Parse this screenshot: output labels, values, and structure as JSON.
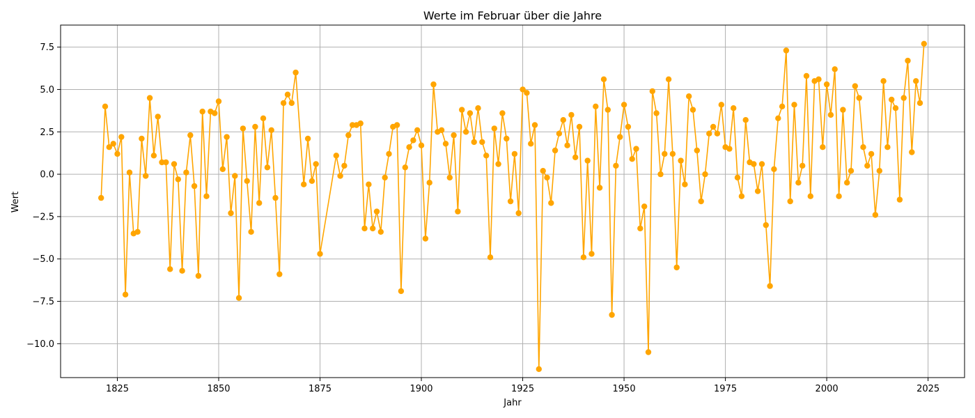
{
  "chart_data": {
    "type": "line",
    "title": "Werte im Februar über die Jahre",
    "xlabel": "Jahr",
    "ylabel": "Wert",
    "xlim": [
      1811,
      2034
    ],
    "ylim": [
      -12.0,
      8.8
    ],
    "xticks": [
      1825,
      1850,
      1875,
      1900,
      1925,
      1950,
      1975,
      2000,
      2025
    ],
    "xtick_labels": [
      "1825",
      "1850",
      "1875",
      "1900",
      "1925",
      "1950",
      "1975",
      "2000",
      "2025"
    ],
    "yticks": [
      -10.0,
      -7.5,
      -5.0,
      -2.5,
      0.0,
      2.5,
      5.0,
      7.5
    ],
    "ytick_labels": [
      "−10.0",
      "−7.5",
      "−5.0",
      "−2.5",
      "0.0",
      "2.5",
      "5.0",
      "7.5"
    ],
    "grid": true,
    "colors": {
      "series": "#FFA500",
      "grid": "#b0b0b0",
      "axis": "#000000"
    },
    "series": [
      {
        "marker": "circle",
        "x": [
          1821,
          1822,
          1823,
          1824,
          1825,
          1826,
          1827,
          1828,
          1829,
          1830,
          1831,
          1832,
          1833,
          1834,
          1835,
          1836,
          1837,
          1838,
          1839,
          1840,
          1841,
          1842,
          1843,
          1844,
          1845,
          1846,
          1847,
          1848,
          1849,
          1850,
          1851,
          1852,
          1853,
          1854,
          1855,
          1856,
          1857,
          1858,
          1859,
          1860,
          1861,
          1862,
          1863,
          1864,
          1865,
          1866,
          1867,
          1868,
          1869,
          1871,
          1872,
          1873,
          1874,
          1875,
          1879,
          1880,
          1881,
          1882,
          1883,
          1884,
          1885,
          1886,
          1887,
          1888,
          1889,
          1890,
          1891,
          1892,
          1893,
          1894,
          1895,
          1896,
          1897,
          1898,
          1899,
          1900,
          1901,
          1902,
          1903,
          1904,
          1905,
          1906,
          1907,
          1908,
          1909,
          1910,
          1911,
          1912,
          1913,
          1914,
          1915,
          1916,
          1917,
          1918,
          1919,
          1920,
          1921,
          1922,
          1923,
          1924,
          1925,
          1926,
          1927,
          1928,
          1929,
          1930,
          1931,
          1932,
          1933,
          1934,
          1935,
          1936,
          1937,
          1938,
          1939,
          1940,
          1941,
          1942,
          1943,
          1944,
          1945,
          1946,
          1947,
          1948,
          1949,
          1950,
          1951,
          1952,
          1953,
          1954,
          1955,
          1956,
          1957,
          1958,
          1959,
          1960,
          1961,
          1962,
          1963,
          1964,
          1965,
          1966,
          1967,
          1968,
          1969,
          1970,
          1971,
          1972,
          1973,
          1974,
          1975,
          1976,
          1977,
          1978,
          1979,
          1980,
          1981,
          1982,
          1983,
          1984,
          1985,
          1986,
          1987,
          1988,
          1989,
          1990,
          1991,
          1992,
          1993,
          1994,
          1995,
          1996,
          1997,
          1998,
          1999,
          2000,
          2001,
          2002,
          2003,
          2004,
          2005,
          2006,
          2007,
          2008,
          2009,
          2010,
          2011,
          2012,
          2013,
          2014,
          2015,
          2016,
          2017,
          2018,
          2019,
          2020,
          2021,
          2022,
          2023,
          2024
        ],
        "y": [
          -1.4,
          4.0,
          1.6,
          1.8,
          1.2,
          2.2,
          -7.1,
          0.1,
          -3.5,
          -3.4,
          2.1,
          -0.1,
          4.5,
          1.1,
          3.4,
          0.7,
          0.7,
          -5.6,
          0.6,
          -0.3,
          -5.7,
          0.1,
          2.3,
          -0.7,
          -6.0,
          3.7,
          -1.3,
          3.7,
          3.6,
          4.3,
          0.3,
          2.2,
          -2.3,
          -0.1,
          -7.3,
          2.7,
          -0.4,
          -3.4,
          2.8,
          -1.7,
          3.3,
          0.4,
          2.6,
          -1.4,
          -5.9,
          4.2,
          4.7,
          4.2,
          6.0,
          -0.6,
          2.1,
          -0.4,
          0.6,
          -4.7,
          1.1,
          -0.1,
          0.5,
          2.3,
          2.9,
          2.9,
          3.0,
          -3.2,
          -0.6,
          -3.2,
          -2.2,
          -3.4,
          -0.2,
          1.2,
          2.8,
          2.9,
          -6.9,
          0.4,
          1.6,
          2.0,
          2.6,
          1.7,
          -3.8,
          -0.5,
          5.3,
          2.5,
          2.6,
          1.8,
          -0.2,
          2.3,
          -2.2,
          3.8,
          2.5,
          3.6,
          1.9,
          3.9,
          1.9,
          1.1,
          -4.9,
          2.7,
          0.6,
          3.6,
          2.1,
          -1.6,
          1.2,
          -2.3,
          5.0,
          4.8,
          1.8,
          2.9,
          -11.5,
          0.2,
          -0.2,
          -1.7,
          1.4,
          2.4,
          3.2,
          1.7,
          3.5,
          1.0,
          2.8,
          -4.9,
          0.8,
          -4.7,
          4.0,
          -0.8,
          5.6,
          3.8,
          -8.3,
          0.5,
          2.2,
          4.1,
          2.8,
          0.9,
          1.5,
          -3.2,
          -1.9,
          -10.5,
          4.9,
          3.6,
          0.0,
          1.2,
          5.6,
          1.2,
          -5.5,
          0.8,
          -0.6,
          4.6,
          3.8,
          1.4,
          -1.6,
          0.0,
          2.4,
          2.8,
          2.4,
          4.1,
          1.6,
          1.5,
          3.9,
          -0.2,
          -1.3,
          3.2,
          0.7,
          0.6,
          -1.0,
          0.6,
          -3.0,
          -6.6,
          0.3,
          3.3,
          4.0,
          7.3,
          -1.6,
          4.1,
          -0.5,
          0.5,
          5.8,
          -1.3,
          5.5,
          5.6,
          1.6,
          5.3,
          3.5,
          6.2,
          -1.3,
          3.8,
          -0.5,
          0.2,
          5.2,
          4.5,
          1.6,
          0.5,
          1.2,
          -2.4,
          0.2,
          5.5,
          1.6,
          4.4,
          3.9,
          -1.5,
          4.5,
          6.7,
          1.3,
          5.5,
          4.2,
          7.7
        ]
      }
    ]
  }
}
